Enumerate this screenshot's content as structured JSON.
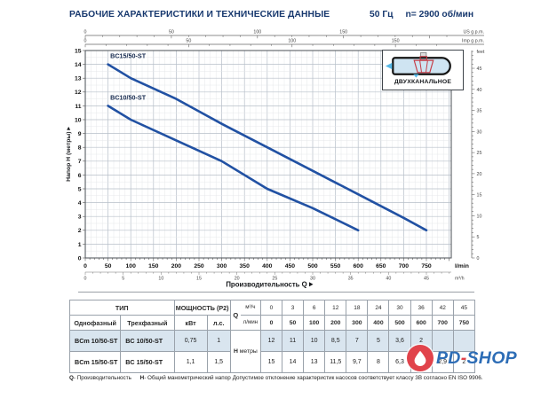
{
  "header": {
    "title": "РАБОЧИЕ ХАРАКТЕРИСТИКИ И ТЕХНИЧЕСКИЕ ДАННЫЕ",
    "frequency": "50 Гц",
    "speed": "n= 2900 об/мин"
  },
  "chart_data": {
    "type": "line",
    "x_title": "Производительность Q",
    "x_unit_primary": "l/min",
    "x_unit_secondary": "m³/h",
    "y_unit_left": "Напор Н (метры)",
    "y_unit_right": "feet",
    "top_unit_us": "US g.p.m.",
    "top_unit_imp": "Imp g.p.m.",
    "xlim_lmin": [
      0,
      805
    ],
    "ylim_m": [
      0,
      15
    ],
    "grid": {
      "minor_q_lmin": 12.5,
      "major_q_lmin": 50,
      "minor_h_m": 0.5,
      "major_h_m": 1
    },
    "x_ticks_lmin": [
      0,
      50,
      100,
      150,
      200,
      250,
      300,
      350,
      400,
      450,
      500,
      550,
      600,
      650,
      700,
      750
    ],
    "x_ticks_m3h": [
      0,
      5,
      10,
      15,
      20,
      25,
      30,
      35,
      40,
      45
    ],
    "top_ticks_usgpm": [
      0,
      50,
      100,
      150
    ],
    "top_ticks_impgpm": [
      0,
      50,
      100,
      150
    ],
    "right_ticks_feet": [
      0,
      5,
      10,
      15,
      20,
      25,
      30,
      35,
      40,
      45
    ],
    "left_ticks_m": [
      0,
      1,
      2,
      3,
      4,
      5,
      6,
      7,
      8,
      9,
      10,
      11,
      12,
      13,
      14,
      15
    ],
    "series": [
      {
        "name": "BC15/50-ST",
        "color": "#2151a3",
        "points_lmin_m": [
          [
            50,
            14
          ],
          [
            100,
            13
          ],
          [
            200,
            11.5
          ],
          [
            300,
            9.7
          ],
          [
            400,
            8
          ],
          [
            500,
            6.3
          ],
          [
            600,
            4.6
          ],
          [
            700,
            2.9
          ],
          [
            750,
            2
          ]
        ],
        "label_pos_lmin_m": [
          55,
          14.45
        ]
      },
      {
        "name": "BC10/50-ST",
        "color": "#2151a3",
        "points_lmin_m": [
          [
            50,
            11
          ],
          [
            100,
            10
          ],
          [
            200,
            8.5
          ],
          [
            300,
            7
          ],
          [
            400,
            5
          ],
          [
            500,
            3.6
          ],
          [
            600,
            2
          ]
        ],
        "label_pos_lmin_m": [
          55,
          11.45
        ]
      }
    ]
  },
  "inset": {
    "label": "ДВУХКАНАЛЬНОЕ"
  },
  "table": {
    "header": {
      "type": "ТИП",
      "power": "МОЩНОСТЬ (P2)",
      "single_phase": "Однофазный",
      "three_phase": "Трехфазный",
      "kw": "кВт",
      "hp": "л.с.",
      "q": "Q",
      "m3h_unit": "м³/ч",
      "lmin_unit": "л/мин",
      "q_m3h": [
        "0",
        "3",
        "6",
        "12",
        "18",
        "24",
        "30",
        "36",
        "42",
        "45"
      ],
      "q_lmin": [
        "0",
        "50",
        "100",
        "200",
        "300",
        "400",
        "500",
        "600",
        "700",
        "750"
      ]
    },
    "h_symbol": "Н",
    "h_unit": "метры",
    "rows": [
      {
        "single_phase": "BCm 10/50-ST",
        "three_phase": "BC 10/50-ST",
        "kw": "0,75",
        "hp": "1",
        "h": [
          "12",
          "11",
          "10",
          "8,5",
          "7",
          "5",
          "3,6",
          "2",
          "",
          ""
        ]
      },
      {
        "single_phase": "BCm 15/50-ST",
        "three_phase": "BC 15/50-ST",
        "kw": "1,1",
        "hp": "1,5",
        "h": [
          "15",
          "14",
          "13",
          "11,5",
          "9,7",
          "8",
          "6,3",
          "4,6",
          "2,9",
          "2"
        ]
      }
    ]
  },
  "footnotes": {
    "q_symbol": "Q",
    "q_text": "- Производительность",
    "h_symbol": "H",
    "h_text": "- Общий манометрический напор",
    "tolerance": "Допустимое отклонение характеристик насосов соответствует классу 3B согласно EN ISO 9906."
  },
  "watermark": {
    "part1": "PD",
    "dash": "-",
    "part2": "SHOP"
  }
}
